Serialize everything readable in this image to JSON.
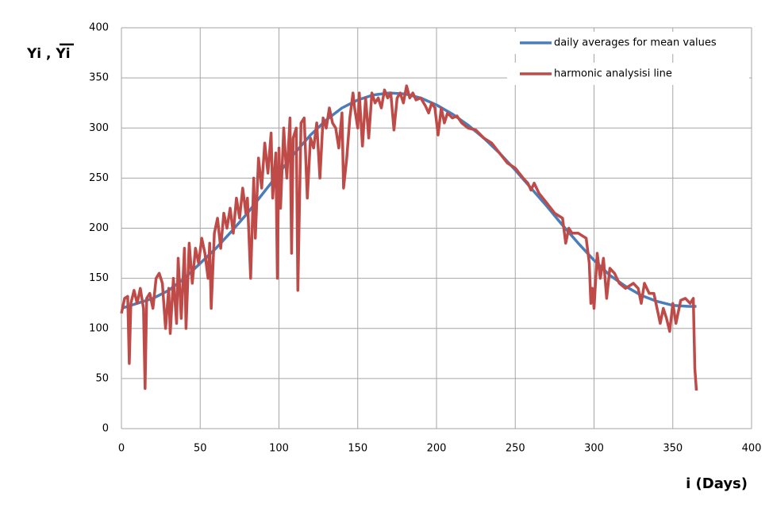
{
  "chart_data": {
    "type": "line",
    "ylabel": "Yi , Yi",
    "xlabel": "i (Days)",
    "xlim": [
      0,
      400
    ],
    "xticks": [
      0,
      50,
      100,
      150,
      200,
      250,
      300,
      350,
      400
    ],
    "ylim": [
      0,
      400
    ],
    "yticks": [
      0,
      50,
      100,
      150,
      200,
      250,
      300,
      350,
      400
    ],
    "grid": true,
    "legend": "upper right",
    "series": [
      {
        "name": "daily averages for mean values",
        "color": "#4a7ebb",
        "x": [
          0,
          10,
          20,
          30,
          40,
          50,
          60,
          70,
          80,
          90,
          100,
          110,
          120,
          130,
          140,
          150,
          160,
          170,
          180,
          190,
          200,
          210,
          220,
          230,
          240,
          250,
          260,
          270,
          280,
          290,
          300,
          310,
          320,
          330,
          340,
          350,
          360,
          365
        ],
        "values": [
          120,
          125,
          130,
          138,
          150,
          165,
          180,
          197,
          215,
          235,
          255,
          275,
          293,
          308,
          320,
          328,
          333,
          335,
          334,
          330,
          323,
          314,
          303,
          290,
          275,
          258,
          240,
          222,
          203,
          185,
          168,
          153,
          142,
          133,
          127,
          123,
          122,
          122
        ]
      },
      {
        "name": "harmonic analysisi line",
        "color": "#be4b48",
        "x": [
          0,
          2,
          4,
          5,
          6,
          8,
          10,
          12,
          14,
          15,
          16,
          18,
          20,
          22,
          24,
          26,
          28,
          30,
          31,
          33,
          35,
          36,
          38,
          40,
          41,
          43,
          45,
          47,
          49,
          51,
          53,
          55,
          56,
          57,
          59,
          61,
          63,
          65,
          67,
          69,
          71,
          73,
          75,
          77,
          79,
          80,
          82,
          84,
          85,
          87,
          89,
          91,
          93,
          95,
          96,
          98,
          99,
          100,
          101,
          103,
          105,
          107,
          108,
          109,
          111,
          112,
          114,
          116,
          118,
          120,
          122,
          124,
          126,
          128,
          130,
          132,
          134,
          136,
          138,
          140,
          141,
          143,
          145,
          147,
          148,
          150,
          151,
          153,
          155,
          157,
          159,
          161,
          163,
          165,
          167,
          169,
          171,
          173,
          175,
          177,
          179,
          181,
          183,
          185,
          187,
          190,
          193,
          195,
          197,
          199,
          201,
          203,
          205,
          207,
          210,
          213,
          216,
          220,
          225,
          230,
          235,
          240,
          245,
          250,
          255,
          258,
          260,
          262,
          265,
          270,
          275,
          280,
          282,
          284,
          286,
          290,
          295,
          297,
          298,
          299,
          300,
          302,
          304,
          306,
          308,
          310,
          313,
          316,
          320,
          325,
          328,
          330,
          332,
          335,
          338,
          340,
          342,
          344,
          346,
          348,
          350,
          352,
          355,
          358,
          361,
          363,
          364,
          365
        ],
        "values": [
          115,
          130,
          132,
          65,
          125,
          138,
          125,
          140,
          120,
          40,
          130,
          135,
          120,
          150,
          155,
          145,
          100,
          140,
          95,
          150,
          105,
          170,
          110,
          180,
          100,
          185,
          145,
          180,
          165,
          190,
          175,
          150,
          185,
          120,
          195,
          210,
          180,
          215,
          200,
          220,
          195,
          230,
          210,
          240,
          215,
          230,
          150,
          250,
          190,
          270,
          240,
          285,
          255,
          295,
          230,
          275,
          150,
          280,
          220,
          300,
          250,
          310,
          175,
          290,
          300,
          138,
          305,
          310,
          230,
          290,
          280,
          305,
          250,
          310,
          300,
          320,
          305,
          300,
          280,
          315,
          240,
          270,
          310,
          335,
          320,
          300,
          335,
          282,
          330,
          290,
          335,
          325,
          330,
          320,
          338,
          330,
          335,
          298,
          330,
          335,
          325,
          342,
          330,
          335,
          328,
          330,
          322,
          315,
          325,
          320,
          293,
          320,
          305,
          315,
          310,
          312,
          305,
          300,
          298,
          290,
          285,
          275,
          265,
          260,
          250,
          245,
          238,
          245,
          235,
          225,
          215,
          210,
          185,
          200,
          195,
          195,
          190,
          165,
          125,
          140,
          120,
          175,
          150,
          170,
          130,
          160,
          155,
          145,
          140,
          145,
          140,
          125,
          145,
          135,
          135,
          120,
          105,
          120,
          110,
          97,
          125,
          105,
          128,
          130,
          125,
          130,
          60,
          38
        ]
      }
    ]
  }
}
